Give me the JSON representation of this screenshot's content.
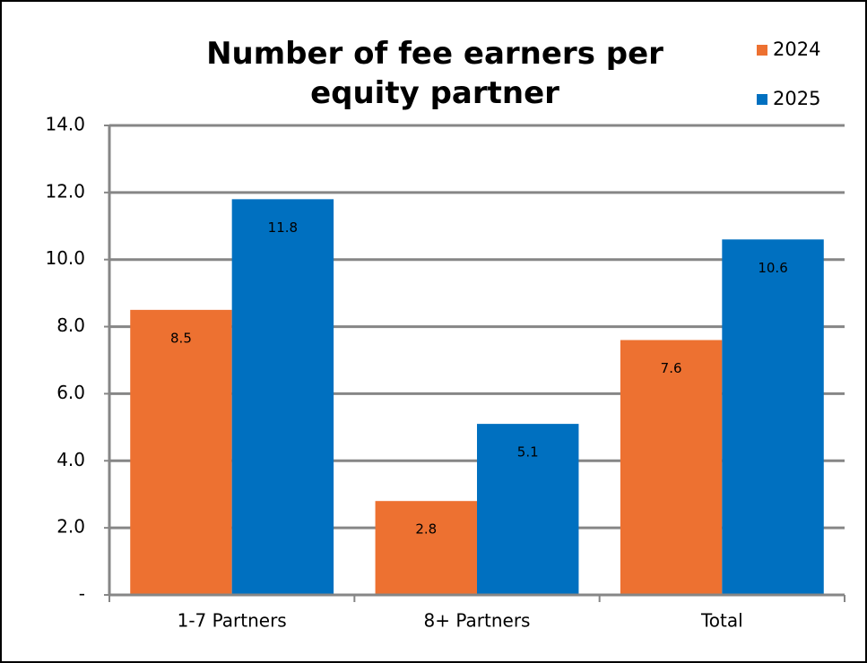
{
  "chart_data": {
    "type": "bar",
    "title": "Number of fee earners per equity partner",
    "categories": [
      "1-7 Partners",
      "8+ Partners",
      "Total"
    ],
    "series": [
      {
        "name": "2024",
        "color": "#ed7131",
        "values": [
          8.5,
          2.8,
          7.6
        ]
      },
      {
        "name": "2025",
        "color": "#0070c0",
        "values": [
          11.8,
          5.1,
          10.6
        ]
      }
    ],
    "ylim": [
      0,
      14
    ],
    "yticks": [
      {
        "value": 0,
        "label": "-"
      },
      {
        "value": 2,
        "label": "2.0"
      },
      {
        "value": 4,
        "label": "4.0"
      },
      {
        "value": 6,
        "label": "6.0"
      },
      {
        "value": 8,
        "label": "8.0"
      },
      {
        "value": 10,
        "label": "10.0"
      },
      {
        "value": 12,
        "label": "12.0"
      },
      {
        "value": 14,
        "label": "14.0"
      }
    ],
    "grid": true,
    "legend": "top-right"
  }
}
